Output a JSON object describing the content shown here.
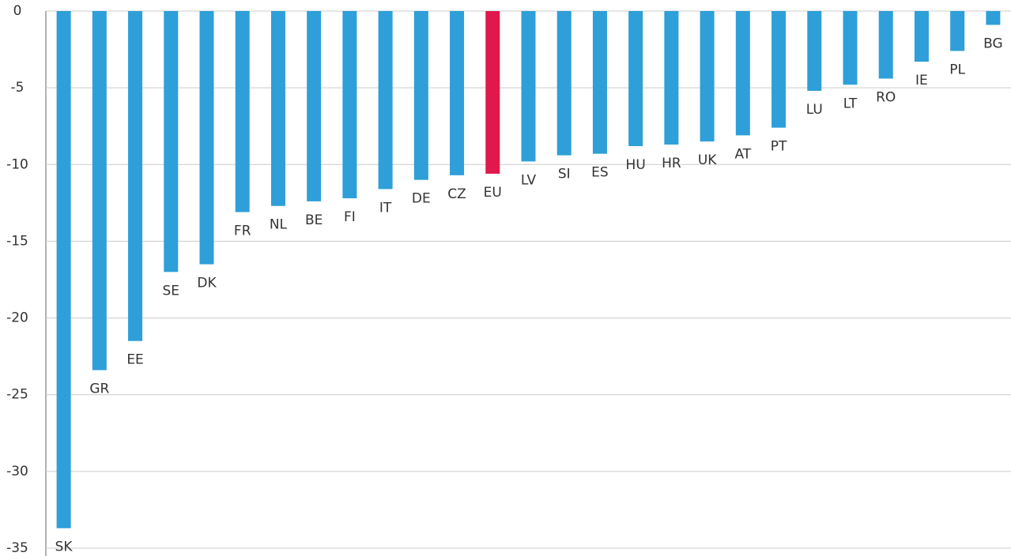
{
  "chart_data": {
    "type": "bar",
    "categories": [
      "SK",
      "GR",
      "EE",
      "SE",
      "DK",
      "FR",
      "NL",
      "BE",
      "FI",
      "IT",
      "DE",
      "CZ",
      "EU",
      "LV",
      "SI",
      "ES",
      "HU",
      "HR",
      "UK",
      "AT",
      "PT",
      "LU",
      "LT",
      "RO",
      "IE",
      "PL",
      "BG"
    ],
    "values": [
      -33.7,
      -23.4,
      -21.5,
      -17.0,
      -16.5,
      -13.1,
      -12.7,
      -12.4,
      -12.2,
      -11.6,
      -11.0,
      -10.7,
      -10.6,
      -9.8,
      -9.4,
      -9.3,
      -8.8,
      -8.7,
      -8.5,
      -8.1,
      -7.6,
      -5.2,
      -4.8,
      -4.4,
      -3.3,
      -2.6,
      -0.9
    ],
    "colors": [
      "#2e9fd8",
      "#2e9fd8",
      "#2e9fd8",
      "#2e9fd8",
      "#2e9fd8",
      "#2e9fd8",
      "#2e9fd8",
      "#2e9fd8",
      "#2e9fd8",
      "#2e9fd8",
      "#2e9fd8",
      "#2e9fd8",
      "#e0184b",
      "#2e9fd8",
      "#2e9fd8",
      "#2e9fd8",
      "#2e9fd8",
      "#2e9fd8",
      "#2e9fd8",
      "#2e9fd8",
      "#2e9fd8",
      "#2e9fd8",
      "#2e9fd8",
      "#2e9fd8",
      "#2e9fd8",
      "#2e9fd8",
      "#2e9fd8"
    ],
    "ylim": [
      -35,
      0
    ],
    "yticks": [
      0,
      -5,
      -10,
      -15,
      -20,
      -25,
      -30,
      -35
    ],
    "grid": true
  }
}
